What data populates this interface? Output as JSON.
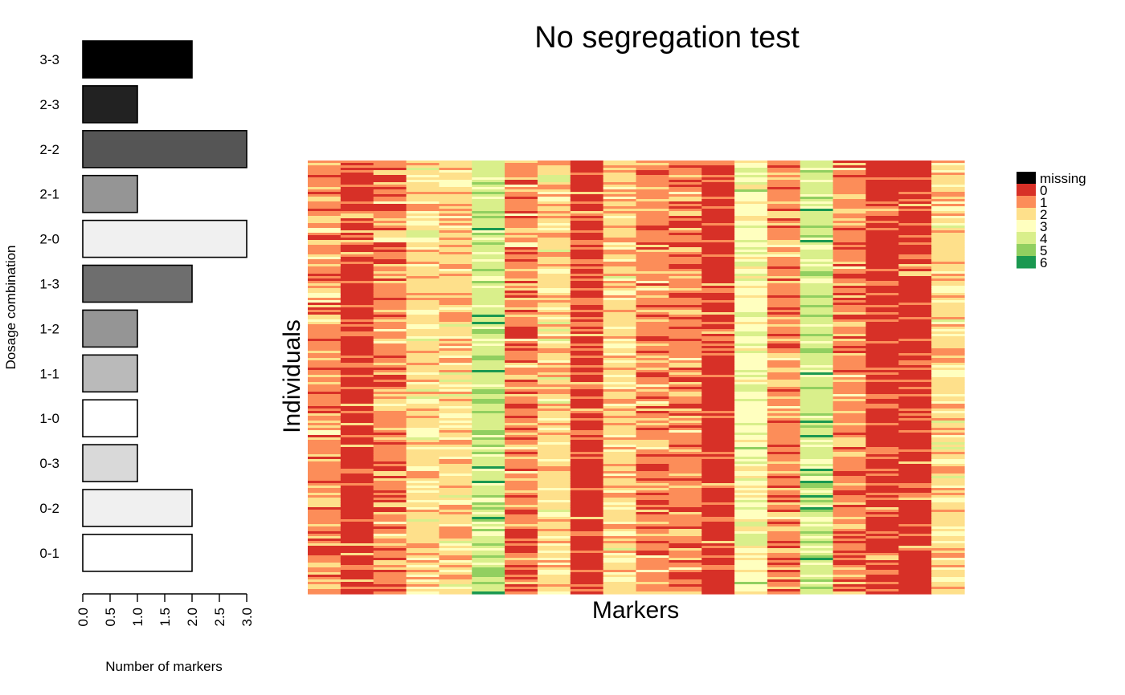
{
  "chart_data": [
    {
      "type": "bar",
      "orientation": "horizontal",
      "title": "",
      "xlabel": "Number of markers",
      "ylabel": "Dosage combination",
      "xlim": [
        0,
        3
      ],
      "x_ticks": [
        "0.0",
        "0.5",
        "1.0",
        "1.5",
        "2.0",
        "2.5",
        "3.0"
      ],
      "categories": [
        "3-3",
        "2-3",
        "2-2",
        "2-1",
        "2-0",
        "1-3",
        "1-2",
        "1-1",
        "1-0",
        "0-3",
        "0-2",
        "0-1"
      ],
      "values": [
        2,
        1,
        3,
        1,
        3,
        2,
        1,
        1,
        1,
        1,
        2,
        2
      ],
      "bar_colors": [
        "#000000",
        "#222222",
        "#555555",
        "#959595",
        "#f0f0f0",
        "#6e6e6e",
        "#959595",
        "#bababa",
        "#ffffff",
        "#d9d9d9",
        "#f0f0f0",
        "#ffffff"
      ]
    },
    {
      "type": "heatmap",
      "title": "No segregation test",
      "xlabel": "Markers",
      "ylabel": "Individuals",
      "n_markers": 20,
      "legend": {
        "placement": "right",
        "labels": [
          "missing",
          "0",
          "1",
          "2",
          "3",
          "4",
          "5",
          "6"
        ],
        "colors": [
          "#000000",
          "#d73027",
          "#fc8d59",
          "#fee08b",
          "#ffffbf",
          "#d9ef8b",
          "#91cf60",
          "#1a9850"
        ]
      },
      "marker_dominant_dosage": [
        1,
        0,
        1,
        2,
        2,
        4,
        1,
        2,
        0,
        2,
        1,
        1,
        0,
        3,
        1,
        4,
        1,
        0,
        0,
        2
      ]
    }
  ]
}
